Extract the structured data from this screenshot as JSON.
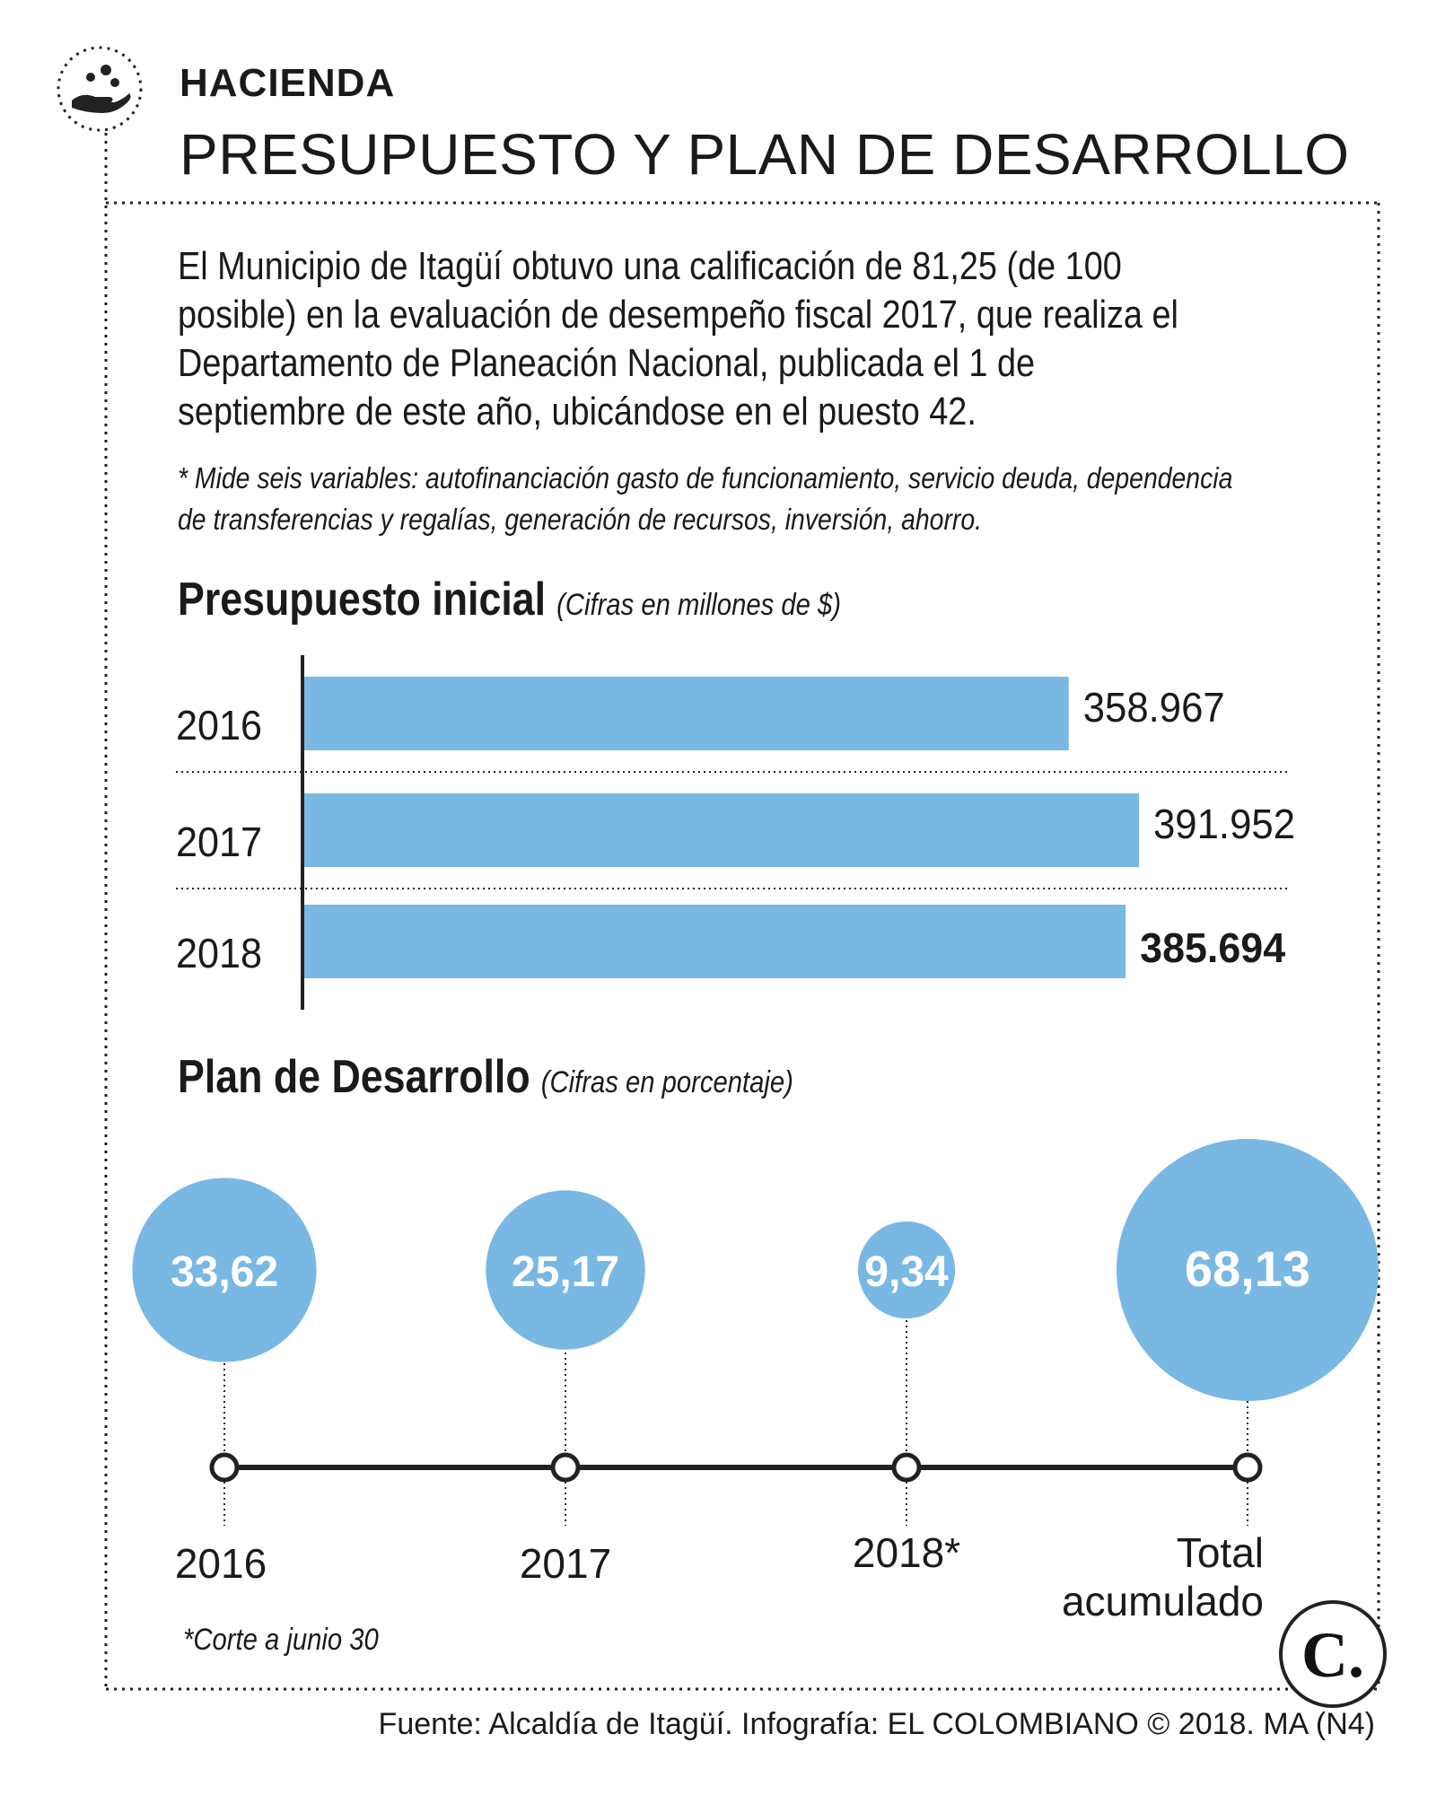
{
  "header": {
    "section": "HACIENDA",
    "title": "PRESUPUESTO Y PLAN DE DESARROLLO",
    "icon": "hand-with-people-icon"
  },
  "intro": {
    "text": "El Municipio de Itagüí obtuvo una calificación de 81,25  (de 100 posible) en la evaluación de desempeño fiscal 2017, que realiza el Departamento de Planeación Nacional, publicada el 1 de septiembre de este año, ubicándose en el puesto 42.",
    "note": "* Mide seis variables: autofinanciación gasto de funcionamiento, servicio deuda, dependencia de transferencias y regalías, generación de recursos, inversión, ahorro."
  },
  "colors": {
    "accent": "#7ab8e4",
    "text": "#1a1a1a",
    "line": "#222222"
  },
  "chart_data": [
    {
      "type": "bar",
      "orientation": "horizontal",
      "title": "Presupuesto inicial",
      "subtitle": "(Cifras en millones de $)",
      "categories": [
        "2016",
        "2017",
        "2018"
      ],
      "values": [
        358967,
        391952,
        385694
      ],
      "labels": [
        "358.967",
        "391.952",
        "385.694"
      ],
      "highlight_index": 2,
      "xlim": [
        0,
        391952
      ]
    },
    {
      "type": "bubble",
      "title": "Plan de Desarrollo",
      "subtitle": "(Cifras en porcentaje)",
      "categories": [
        "2016",
        "2017",
        "2018*",
        "Total acumulado"
      ],
      "values": [
        33.62,
        25.17,
        9.34,
        68.13
      ],
      "labels": [
        "33,62",
        "25,17",
        "9,34",
        "68,13"
      ],
      "footnote": "*Corte a junio 30"
    }
  ],
  "footer": {
    "source": "Fuente: Alcaldía de Itagüí. Infografía: EL COLOMBIANO © 2018. MA (N4)",
    "logo_letter": "C."
  }
}
